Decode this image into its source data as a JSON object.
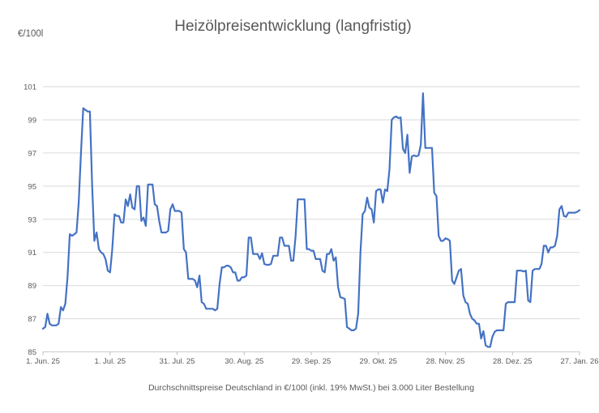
{
  "header": {
    "title": "Heizölpreisentwicklung (langfristig)",
    "y_unit_label": "€/100l"
  },
  "footer": {
    "caption": "Durchschnittspreise Deutschland in €/100l (inkl. 19% MwSt.) bei 3.000 Liter Bestellung"
  },
  "chart_data": {
    "type": "line",
    "title": "Heizölpreisentwicklung (langfristig)",
    "ylabel": "€/100l",
    "xlabel": "",
    "ylim": [
      85,
      101
    ],
    "y_ticks": [
      85,
      87,
      89,
      91,
      93,
      95,
      97,
      99,
      101
    ],
    "grid": "horizontal",
    "legend": "none",
    "colors": {
      "line": "#4472c4",
      "grid": "#d9d9d9",
      "axis": "#c9c9c9",
      "tick": "#bfbfbf",
      "text": "#595959"
    },
    "x_range_days": [
      0,
      240
    ],
    "x_ticks": [
      {
        "label": "1. Jun. 25",
        "day": 0
      },
      {
        "label": "1. Jul. 25",
        "day": 30
      },
      {
        "label": "31. Jul. 25",
        "day": 60
      },
      {
        "label": "30. Aug. 25",
        "day": 90
      },
      {
        "label": "29. Sep. 25",
        "day": 120
      },
      {
        "label": "29. Okt. 25",
        "day": 150
      },
      {
        "label": "28. Nov. 25",
        "day": 180
      },
      {
        "label": "28. Dez. 25",
        "day": 210
      },
      {
        "label": "27. Jan. 26",
        "day": 240
      }
    ],
    "series": [
      {
        "points": [
          [
            0,
            86.4
          ],
          [
            1,
            86.5
          ],
          [
            2,
            87.3
          ],
          [
            3,
            86.7
          ],
          [
            4,
            86.6
          ],
          [
            6,
            86.6
          ],
          [
            7,
            86.7
          ],
          [
            8,
            87.7
          ],
          [
            9,
            87.5
          ],
          [
            10,
            87.9
          ],
          [
            11,
            89.5
          ],
          [
            12,
            92.1
          ],
          [
            13,
            92.0
          ],
          [
            14,
            92.1
          ],
          [
            15,
            92.2
          ],
          [
            16,
            94.0
          ],
          [
            17,
            97.0
          ],
          [
            18,
            99.7
          ],
          [
            19,
            99.6
          ],
          [
            20,
            99.5
          ],
          [
            21,
            99.5
          ],
          [
            22,
            95.0
          ],
          [
            23,
            91.7
          ],
          [
            24,
            92.2
          ],
          [
            25,
            91.2
          ],
          [
            26,
            91.0
          ],
          [
            27,
            90.9
          ],
          [
            28,
            90.6
          ],
          [
            29,
            89.9
          ],
          [
            30,
            89.8
          ],
          [
            31,
            91.2
          ],
          [
            32,
            93.3
          ],
          [
            33,
            93.2
          ],
          [
            34,
            93.2
          ],
          [
            35,
            92.8
          ],
          [
            36,
            92.8
          ],
          [
            37,
            94.2
          ],
          [
            38,
            93.8
          ],
          [
            39,
            94.5
          ],
          [
            40,
            93.7
          ],
          [
            41,
            93.6
          ],
          [
            42,
            95.0
          ],
          [
            43,
            95.0
          ],
          [
            44,
            92.9
          ],
          [
            45,
            93.1
          ],
          [
            46,
            92.6
          ],
          [
            47,
            95.1
          ],
          [
            48,
            95.1
          ],
          [
            49,
            95.1
          ],
          [
            50,
            93.9
          ],
          [
            51,
            93.8
          ],
          [
            52,
            92.9
          ],
          [
            53,
            92.2
          ],
          [
            54,
            92.2
          ],
          [
            55,
            92.2
          ],
          [
            56,
            92.3
          ],
          [
            57,
            93.6
          ],
          [
            58,
            93.9
          ],
          [
            59,
            93.5
          ],
          [
            60,
            93.5
          ],
          [
            61,
            93.5
          ],
          [
            62,
            93.4
          ],
          [
            63,
            91.2
          ],
          [
            64,
            91.0
          ],
          [
            65,
            89.4
          ],
          [
            66,
            89.4
          ],
          [
            67,
            89.4
          ],
          [
            68,
            89.3
          ],
          [
            69,
            88.9
          ],
          [
            70,
            89.6
          ],
          [
            71,
            88.0
          ],
          [
            72,
            87.9
          ],
          [
            73,
            87.6
          ],
          [
            74,
            87.6
          ],
          [
            75,
            87.6
          ],
          [
            76,
            87.6
          ],
          [
            77,
            87.5
          ],
          [
            78,
            87.6
          ],
          [
            79,
            89.1
          ],
          [
            80,
            90.1
          ],
          [
            81,
            90.1
          ],
          [
            82,
            90.2
          ],
          [
            83,
            90.2
          ],
          [
            84,
            90.1
          ],
          [
            85,
            89.8
          ],
          [
            86,
            89.8
          ],
          [
            87,
            89.3
          ],
          [
            88,
            89.3
          ],
          [
            89,
            89.5
          ],
          [
            90,
            89.5
          ],
          [
            91,
            89.6
          ],
          [
            92,
            91.9
          ],
          [
            93,
            91.9
          ],
          [
            94,
            90.9
          ],
          [
            95,
            90.9
          ],
          [
            96,
            90.9
          ],
          [
            97,
            90.6
          ],
          [
            98,
            90.95
          ],
          [
            99,
            90.3
          ],
          [
            100,
            90.25
          ],
          [
            101,
            90.25
          ],
          [
            102,
            90.3
          ],
          [
            103,
            90.8
          ],
          [
            104,
            90.8
          ],
          [
            105,
            90.8
          ],
          [
            106,
            91.9
          ],
          [
            107,
            91.9
          ],
          [
            108,
            91.4
          ],
          [
            109,
            91.4
          ],
          [
            110,
            91.4
          ],
          [
            111,
            90.5
          ],
          [
            112,
            90.5
          ],
          [
            113,
            92.0
          ],
          [
            114,
            94.2
          ],
          [
            115,
            94.2
          ],
          [
            116,
            94.2
          ],
          [
            117,
            94.2
          ],
          [
            118,
            91.2
          ],
          [
            119,
            91.2
          ],
          [
            120,
            91.1
          ],
          [
            121,
            91.1
          ],
          [
            122,
            90.6
          ],
          [
            123,
            90.6
          ],
          [
            124,
            90.6
          ],
          [
            125,
            89.9
          ],
          [
            126,
            89.8
          ],
          [
            127,
            90.9
          ],
          [
            128,
            90.9
          ],
          [
            129,
            91.2
          ],
          [
            130,
            90.5
          ],
          [
            131,
            90.7
          ],
          [
            132,
            88.9
          ],
          [
            133,
            88.3
          ],
          [
            134,
            88.25
          ],
          [
            135,
            88.2
          ],
          [
            136,
            86.5
          ],
          [
            137,
            86.4
          ],
          [
            138,
            86.3
          ],
          [
            139,
            86.3
          ],
          [
            140,
            86.4
          ],
          [
            141,
            87.3
          ],
          [
            142,
            91.0
          ],
          [
            143,
            93.3
          ],
          [
            144,
            93.5
          ],
          [
            145,
            94.3
          ],
          [
            146,
            93.7
          ],
          [
            147,
            93.6
          ],
          [
            148,
            92.8
          ],
          [
            149,
            94.7
          ],
          [
            150,
            94.8
          ],
          [
            151,
            94.8
          ],
          [
            152,
            94.0
          ],
          [
            153,
            94.8
          ],
          [
            154,
            94.7
          ],
          [
            155,
            96.0
          ],
          [
            156,
            99.0
          ],
          [
            157,
            99.15
          ],
          [
            158,
            99.2
          ],
          [
            159,
            99.1
          ],
          [
            160,
            99.15
          ],
          [
            161,
            97.25
          ],
          [
            162,
            97.0
          ],
          [
            163,
            98.1
          ],
          [
            164,
            95.8
          ],
          [
            165,
            96.8
          ],
          [
            166,
            96.85
          ],
          [
            167,
            96.8
          ],
          [
            168,
            96.85
          ],
          [
            169,
            97.5
          ],
          [
            170,
            100.6
          ],
          [
            171,
            97.3
          ],
          [
            172,
            97.3
          ],
          [
            173,
            97.3
          ],
          [
            174,
            97.3
          ],
          [
            175,
            94.6
          ],
          [
            176,
            94.4
          ],
          [
            177,
            92.0
          ],
          [
            178,
            91.7
          ],
          [
            179,
            91.7
          ],
          [
            180,
            91.85
          ],
          [
            181,
            91.8
          ],
          [
            182,
            91.7
          ],
          [
            183,
            89.3
          ],
          [
            184,
            89.1
          ],
          [
            185,
            89.5
          ],
          [
            186,
            89.9
          ],
          [
            187,
            90.0
          ],
          [
            188,
            88.4
          ],
          [
            189,
            88.0
          ],
          [
            190,
            87.9
          ],
          [
            191,
            87.3
          ],
          [
            192,
            87.0
          ],
          [
            193,
            86.9
          ],
          [
            194,
            86.7
          ],
          [
            195,
            86.7
          ],
          [
            196,
            85.8
          ],
          [
            197,
            86.25
          ],
          [
            198,
            85.4
          ],
          [
            199,
            85.3
          ],
          [
            200,
            85.3
          ],
          [
            201,
            85.9
          ],
          [
            202,
            86.2
          ],
          [
            203,
            86.3
          ],
          [
            204,
            86.3
          ],
          [
            205,
            86.3
          ],
          [
            206,
            86.3
          ],
          [
            207,
            87.9
          ],
          [
            208,
            88.0
          ],
          [
            209,
            88.0
          ],
          [
            210,
            88.0
          ],
          [
            211,
            88.0
          ],
          [
            212,
            89.9
          ],
          [
            213,
            89.9
          ],
          [
            214,
            89.9
          ],
          [
            215,
            89.85
          ],
          [
            216,
            89.9
          ],
          [
            217,
            88.1
          ],
          [
            218,
            88.0
          ],
          [
            219,
            89.9
          ],
          [
            220,
            90.0
          ],
          [
            221,
            90.0
          ],
          [
            222,
            90.0
          ],
          [
            223,
            90.3
          ],
          [
            224,
            91.4
          ],
          [
            225,
            91.4
          ],
          [
            226,
            91.0
          ],
          [
            227,
            91.3
          ],
          [
            228,
            91.3
          ],
          [
            229,
            91.4
          ],
          [
            230,
            92.0
          ],
          [
            231,
            93.6
          ],
          [
            232,
            93.8
          ],
          [
            233,
            93.2
          ],
          [
            234,
            93.15
          ],
          [
            235,
            93.4
          ],
          [
            236,
            93.4
          ],
          [
            237,
            93.4
          ],
          [
            238,
            93.4
          ],
          [
            239,
            93.45
          ],
          [
            240,
            93.55
          ]
        ]
      }
    ]
  }
}
